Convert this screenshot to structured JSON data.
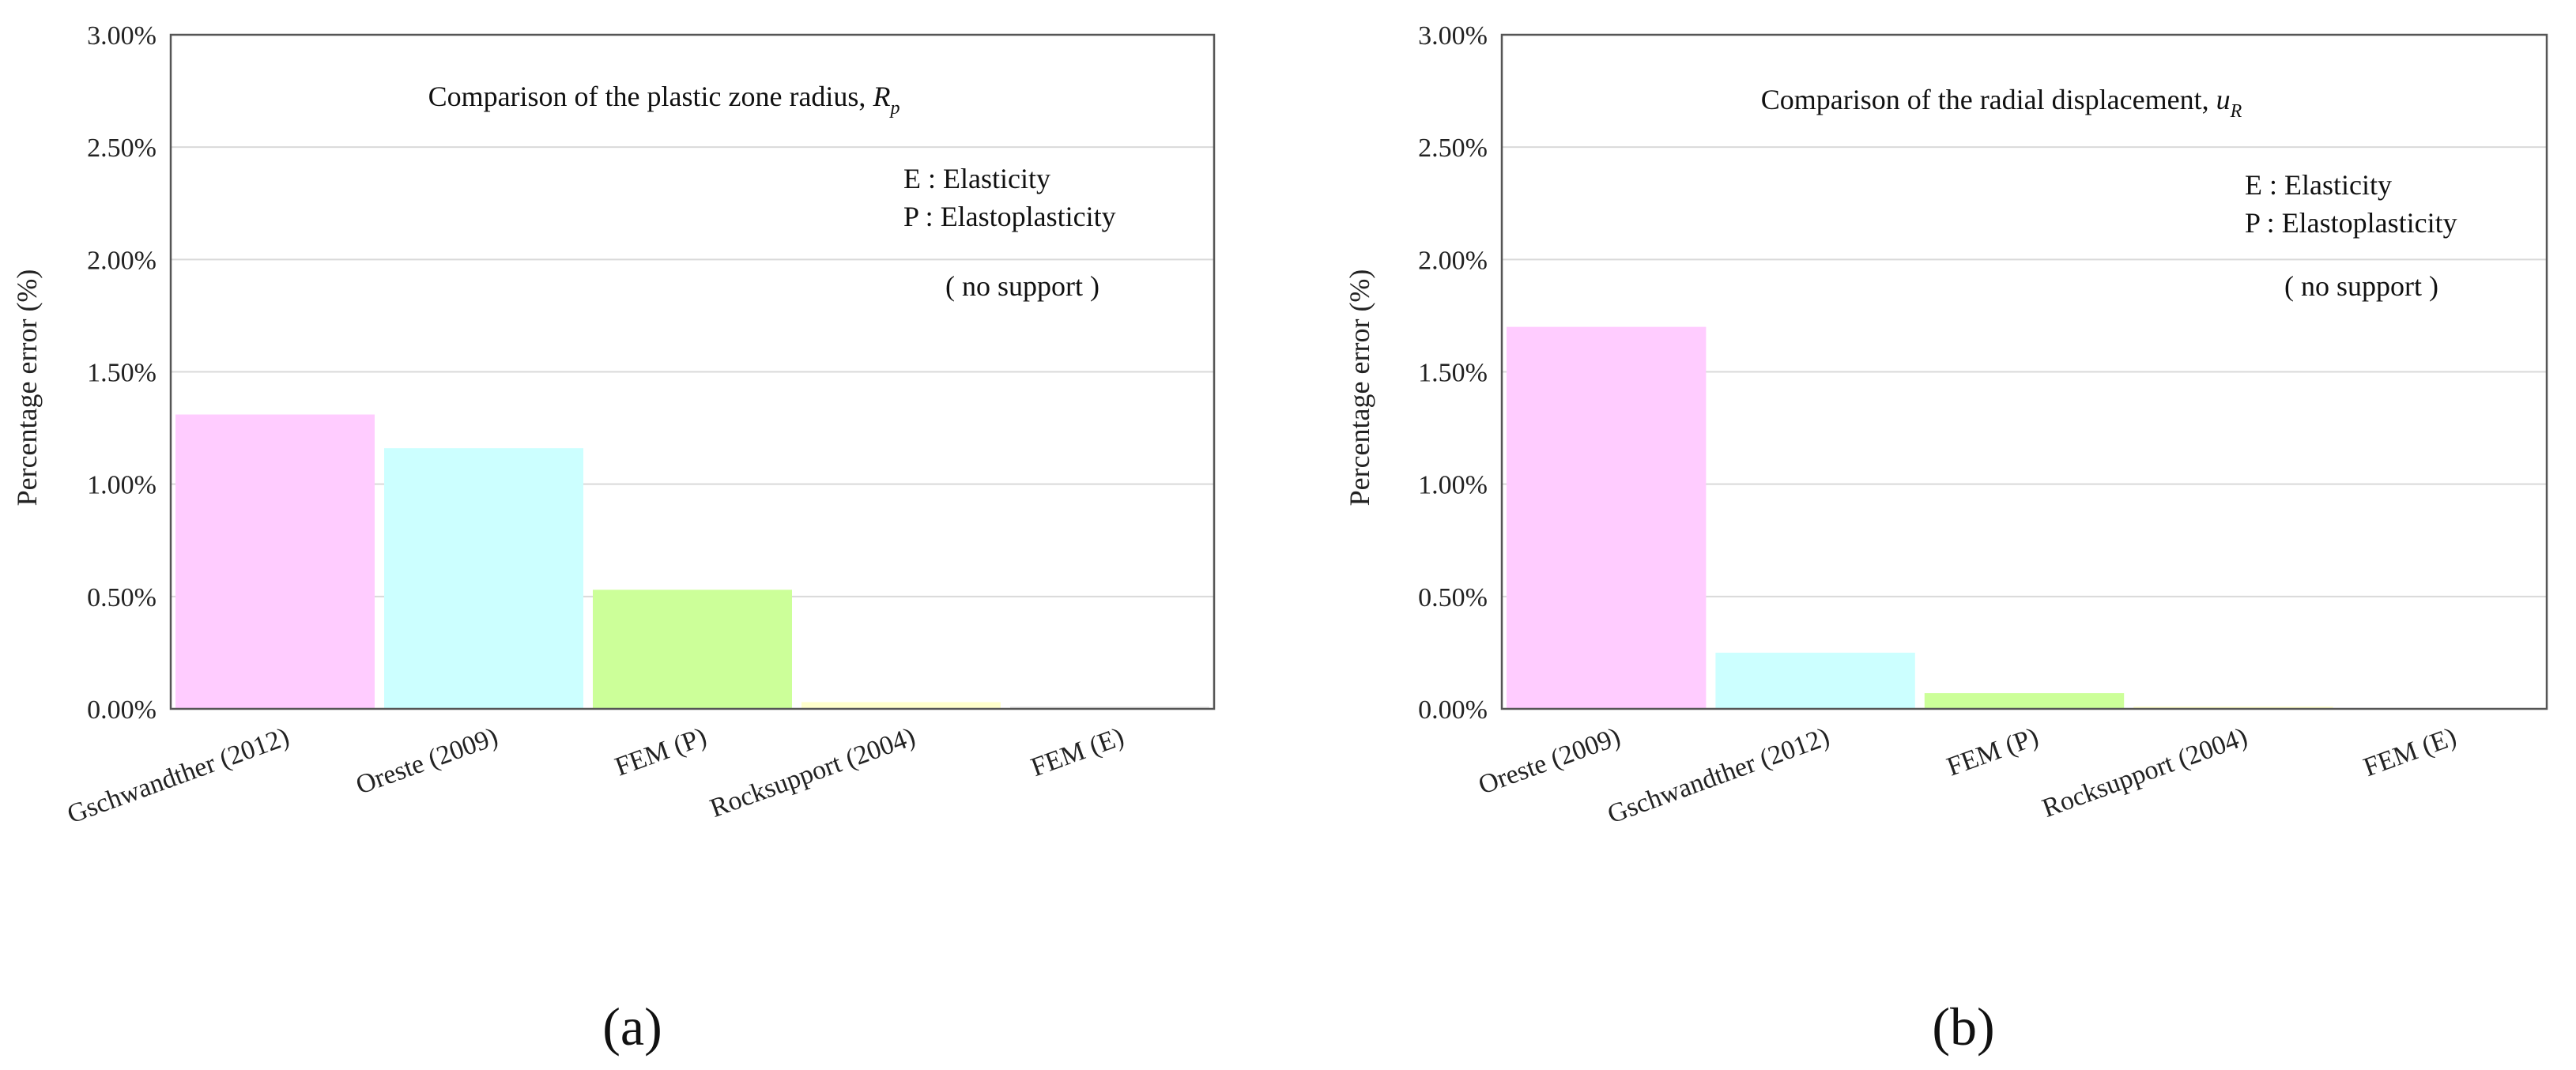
{
  "chart_data": [
    {
      "type": "bar",
      "panel_label": "(a)",
      "title_prefix": "Comparison of the plastic  zone radius,",
      "title_symbol": "R",
      "title_sub": "p",
      "ylabel": "Percentage error (%)",
      "ylim": [
        0,
        3.0
      ],
      "yticks": [
        "0.00%",
        "0.50%",
        "1.00%",
        "1.50%",
        "2.00%",
        "2.50%",
        "3.00%"
      ],
      "categories": [
        "Gschwandther (2012)",
        "Oreste (2009)",
        "FEM (P)",
        "Rocksupport (2004)",
        "FEM (E)"
      ],
      "values": [
        1.31,
        1.16,
        0.53,
        0.03,
        0.01
      ],
      "colors": [
        "#ffccff",
        "#ccffff",
        "#ccff99",
        "#ffffcc",
        "#e6e6e6"
      ],
      "legend_lines": [
        "E : Elasticity",
        "P : Elastoplasticity"
      ],
      "condition_note": "( no support )",
      "grid": true
    },
    {
      "type": "bar",
      "panel_label": "(b)",
      "title_prefix": "Comparison of the radial displacement,",
      "title_symbol": "u",
      "title_sub": "R",
      "ylabel": "Percentage error (%)",
      "ylim": [
        0,
        3.0
      ],
      "yticks": [
        "0.00%",
        "0.50%",
        "1.00%",
        "1.50%",
        "2.00%",
        "2.50%",
        "3.00%"
      ],
      "categories": [
        "Oreste (2009)",
        "Gschwandther (2012)",
        "FEM (P)",
        "Rocksupport (2004)",
        "FEM (E)"
      ],
      "values": [
        1.7,
        0.25,
        0.07,
        0.01,
        0.0
      ],
      "colors": [
        "#ffccff",
        "#ccffff",
        "#ccff99",
        "#ffffcc",
        "#e6e6e6"
      ],
      "legend_lines": [
        "E : Elasticity",
        "P : Elastoplasticity"
      ],
      "condition_note": "( no support )",
      "grid": true
    }
  ]
}
